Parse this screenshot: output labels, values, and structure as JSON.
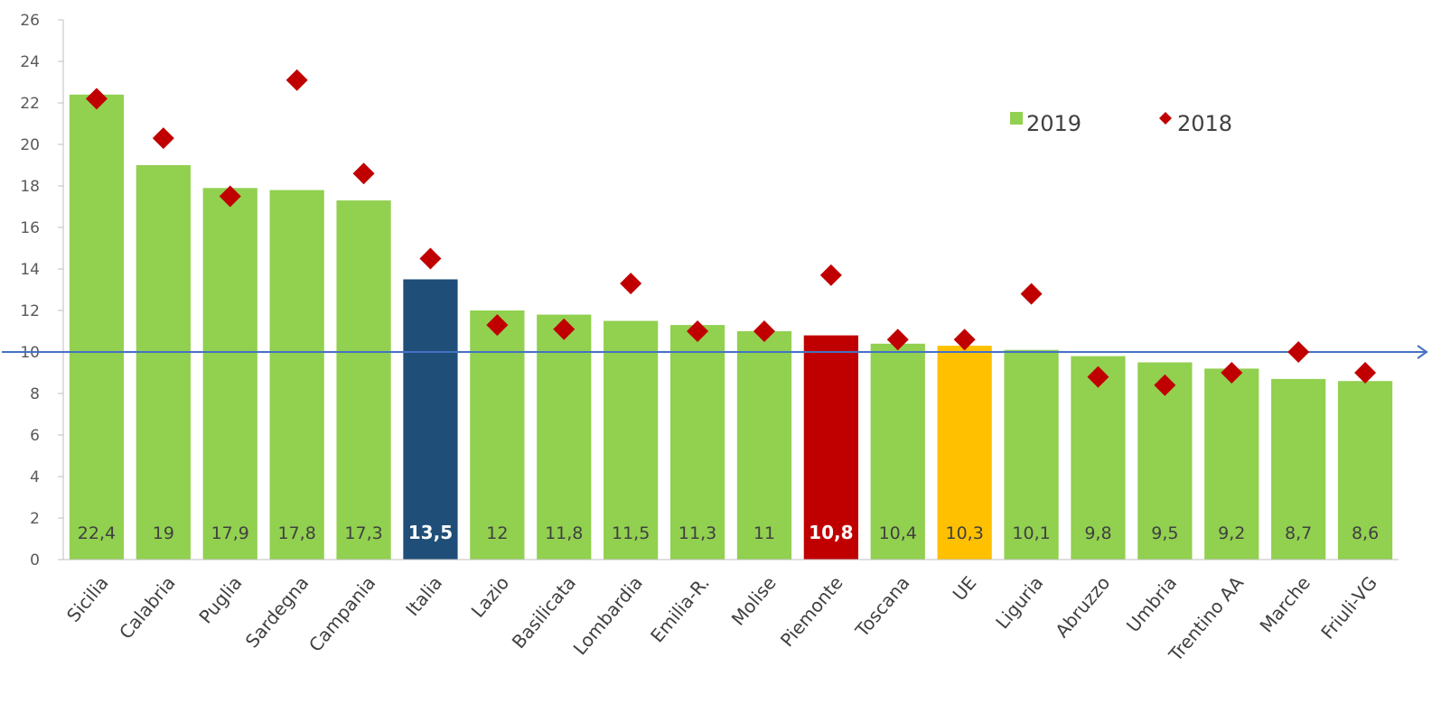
{
  "chart_data": {
    "type": "bar",
    "categories": [
      "Sicilia",
      "Calabria",
      "Puglia",
      "Sardegna",
      "Campania",
      "Italia",
      "Lazio",
      "Basilicata",
      "Lombardia",
      "Emilia-R.",
      "Molise",
      "Piemonte",
      "Toscana",
      "UE",
      "Liguria",
      "Abruzzo",
      "Umbria",
      "Trentino AA",
      "Marche",
      "Friuli-VG"
    ],
    "series": [
      {
        "name": "2019",
        "kind": "bar",
        "values": [
          22.4,
          19,
          17.9,
          17.8,
          17.3,
          13.5,
          12,
          11.8,
          11.5,
          11.3,
          11,
          10.8,
          10.4,
          10.3,
          10.1,
          9.8,
          9.5,
          9.2,
          8.7,
          8.6
        ],
        "labels": [
          "22,4",
          "19",
          "17,9",
          "17,8",
          "17,3",
          "13,5",
          "12",
          "11,8",
          "11,5",
          "11,3",
          "11",
          "10,8",
          "10,4",
          "10,3",
          "10,1",
          "9,8",
          "9,5",
          "9,2",
          "8,7",
          "8,6"
        ],
        "color": "#92D050",
        "highlight_colors": {
          "Italia": "#1F4E79",
          "Piemonte": "#C00000",
          "UE": "#FFC000"
        }
      },
      {
        "name": "2018",
        "kind": "marker",
        "marker": "diamond",
        "values": [
          22.2,
          20.3,
          17.5,
          23.1,
          18.6,
          14.5,
          11.3,
          11.1,
          13.3,
          11,
          11,
          13.7,
          10.6,
          10.6,
          12.8,
          8.8,
          8.4,
          9,
          10,
          9
        ],
        "color": "#C00000"
      }
    ],
    "reference_line": {
      "value": 10,
      "color": "#4472C4"
    },
    "ylim": [
      0,
      26
    ],
    "yticks": [
      "0",
      "2",
      "4",
      "6",
      "8",
      "10",
      "12",
      "14",
      "16",
      "18",
      "20",
      "22",
      "24",
      "26"
    ],
    "xlabel": "",
    "ylabel": "",
    "title": "",
    "grid": false,
    "legend": {
      "position": "top-right",
      "items": [
        "2019",
        "2018"
      ]
    }
  }
}
